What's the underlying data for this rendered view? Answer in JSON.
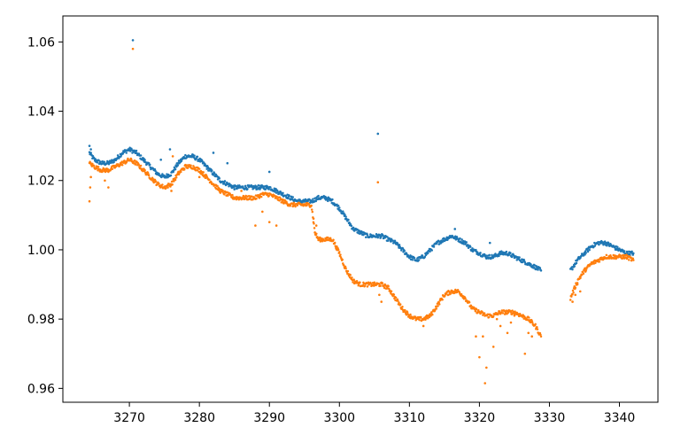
{
  "chart_data": {
    "type": "scatter",
    "title": "",
    "xlabel": "",
    "ylabel": "",
    "xlim": [
      3260.5,
      3345.5
    ],
    "ylim": [
      0.956,
      1.0675
    ],
    "x_ticks": [
      3270,
      3280,
      3290,
      3300,
      3310,
      3320,
      3330,
      3340
    ],
    "x_tick_labels": [
      "3270",
      "3280",
      "3290",
      "3300",
      "3310",
      "3320",
      "3330",
      "3340"
    ],
    "y_ticks": [
      0.96,
      0.98,
      1.0,
      1.02,
      1.04,
      1.06
    ],
    "y_tick_labels": [
      "0.96",
      "0.98",
      "1.00",
      "1.02",
      "1.04",
      "1.06"
    ],
    "grid": false,
    "legend": "none",
    "series_colors": [
      "#1f77b4",
      "#ff7f0e"
    ],
    "series": [
      {
        "color": "#1f77b4",
        "segments": [
          {
            "x": [
              3264.3,
              3265,
              3266,
              3267,
              3268,
              3269,
              3270,
              3271,
              3272,
              3273,
              3274,
              3275,
              3276,
              3277,
              3278,
              3279,
              3280,
              3281,
              3282,
              3283,
              3284,
              3285,
              3286,
              3287,
              3288,
              3289,
              3290,
              3291,
              3292,
              3293,
              3294,
              3295,
              3296,
              3297,
              3298,
              3299,
              3300,
              3301,
              3302,
              3303,
              3304,
              3305,
              3306,
              3307,
              3308,
              3309,
              3310,
              3311,
              3312,
              3313,
              3314,
              3315,
              3316,
              3317,
              3318,
              3319,
              3320,
              3321,
              3322,
              3323,
              3324,
              3325,
              3326,
              3327,
              3328,
              3328.8
            ],
            "y": [
              1.028,
              1.026,
              1.025,
              1.025,
              1.026,
              1.028,
              1.029,
              1.028,
              1.026,
              1.024,
              1.022,
              1.021,
              1.022,
              1.025,
              1.027,
              1.027,
              1.026,
              1.024,
              1.022,
              1.02,
              1.019,
              1.018,
              1.018,
              1.018,
              1.018,
              1.018,
              1.018,
              1.017,
              1.016,
              1.015,
              1.014,
              1.014,
              1.014,
              1.015,
              1.015,
              1.014,
              1.012,
              1.009,
              1.006,
              1.005,
              1.004,
              1.004,
              1.004,
              1.003,
              1.002,
              1.0,
              0.998,
              0.997,
              0.998,
              1.0,
              1.002,
              1.003,
              1.004,
              1.003,
              1.002,
              1.0,
              0.999,
              0.998,
              0.998,
              0.999,
              0.999,
              0.998,
              0.997,
              0.996,
              0.995,
              0.994
            ]
          },
          {
            "x": [
              3333,
              3334,
              3335,
              3336,
              3337,
              3338,
              3339,
              3340,
              3341,
              3342
            ],
            "y": [
              0.994,
              0.997,
              0.999,
              1.001,
              1.002,
              1.002,
              1.001,
              1.0,
              0.999,
              0.999
            ]
          }
        ],
        "outliers": {
          "x": [
            3264.3,
            3264.5,
            3270.5,
            3275.8,
            3274.5,
            3282,
            3284,
            3290,
            3305.5,
            3316.5,
            3321.5
          ],
          "y": [
            1.03,
            1.029,
            1.0605,
            1.029,
            1.026,
            1.028,
            1.025,
            1.0225,
            1.0335,
            1.006,
            1.002
          ]
        }
      },
      {
        "color": "#ff7f0e",
        "segments": [
          {
            "x": [
              3264.3,
              3265,
              3266,
              3267,
              3268,
              3269,
              3270,
              3271,
              3272,
              3273,
              3274,
              3275,
              3276,
              3277,
              3278,
              3279,
              3280,
              3281,
              3282,
              3283,
              3284,
              3285,
              3286,
              3287,
              3288,
              3289,
              3290,
              3291,
              3292,
              3293,
              3294,
              3295,
              3296,
              3296.5,
              3297,
              3298,
              3299,
              3300,
              3301,
              3302,
              3303,
              3304,
              3305,
              3306,
              3307,
              3308,
              3309,
              3310,
              3311,
              3312,
              3313,
              3314,
              3315,
              3316,
              3317,
              3318,
              3319,
              3320,
              3321,
              3322,
              3323,
              3324,
              3325,
              3326,
              3327,
              3328,
              3328.8
            ],
            "y": [
              1.025,
              1.024,
              1.023,
              1.023,
              1.024,
              1.025,
              1.026,
              1.025,
              1.023,
              1.021,
              1.019,
              1.018,
              1.019,
              1.022,
              1.024,
              1.024,
              1.023,
              1.021,
              1.019,
              1.017,
              1.016,
              1.015,
              1.015,
              1.015,
              1.015,
              1.016,
              1.016,
              1.015,
              1.014,
              1.013,
              1.013,
              1.013,
              1.013,
              1.005,
              1.003,
              1.003,
              1.003,
              0.999,
              0.994,
              0.991,
              0.99,
              0.99,
              0.99,
              0.99,
              0.989,
              0.986,
              0.983,
              0.981,
              0.98,
              0.98,
              0.981,
              0.984,
              0.987,
              0.988,
              0.988,
              0.986,
              0.983,
              0.982,
              0.981,
              0.981,
              0.982,
              0.982,
              0.982,
              0.981,
              0.98,
              0.978,
              0.975
            ]
          },
          {
            "x": [
              3333,
              3334,
              3335,
              3336,
              3337,
              3338,
              3339,
              3340,
              3341,
              3342
            ],
            "y": [
              0.986,
              0.991,
              0.994,
              0.996,
              0.997,
              0.998,
              0.998,
              0.998,
              0.998,
              0.997
            ]
          }
        ],
        "outliers": {
          "x": [
            3264.3,
            3264.4,
            3264.5,
            3266.5,
            3267,
            3270.5,
            3276,
            3276.2,
            3280,
            3286,
            3288,
            3289,
            3290,
            3291,
            3292,
            3296.3,
            3296.5,
            3296.7,
            3305.5,
            3305.7,
            3306,
            3312,
            3319.5,
            3320,
            3320.5,
            3321,
            3320.8,
            3322,
            3322.5,
            3323,
            3324,
            3324.5,
            3325,
            3326.5,
            3327,
            3327.5,
            3333.3,
            3333.7,
            3334,
            3334.4
          ],
          "y": [
            1.014,
            1.018,
            1.021,
            1.02,
            1.018,
            1.058,
            1.017,
            1.027,
            1.021,
            1.017,
            1.007,
            1.011,
            1.008,
            1.007,
            1.0135,
            1.009,
            1.005,
            1.007,
            1.0195,
            0.987,
            0.985,
            0.978,
            0.975,
            0.969,
            0.975,
            0.966,
            0.9615,
            0.972,
            0.98,
            0.978,
            0.976,
            0.979,
            0.981,
            0.97,
            0.976,
            0.975,
            0.985,
            0.987,
            0.99,
            0.988
          ]
        }
      }
    ]
  }
}
